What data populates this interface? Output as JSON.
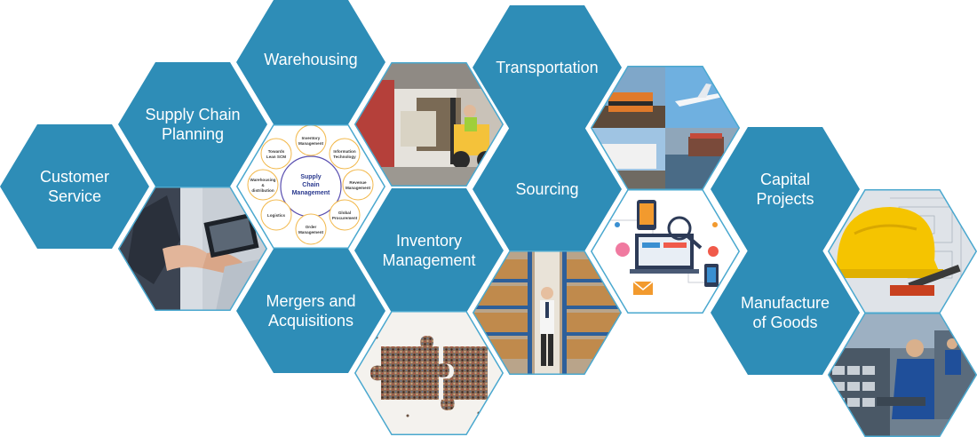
{
  "colors": {
    "hex_fill": "#2e8db7",
    "hex_text": "#ffffff",
    "image_border": "#4aa8cf",
    "scm_center_text": "#2b3a8f",
    "scm_ring": "#f2b84a"
  },
  "tiles": [
    {
      "id": "customer-service",
      "label": "Customer\nService"
    },
    {
      "id": "supply-chain-planning",
      "label": "Supply Chain\nPlanning"
    },
    {
      "id": "warehousing",
      "label": "Warehousing"
    },
    {
      "id": "mergers-and-acquisitions",
      "label": "Mergers and\nAcquisitions"
    },
    {
      "id": "inventory-management",
      "label": "Inventory\nManagement"
    },
    {
      "id": "transportation",
      "label": "Transportation"
    },
    {
      "id": "sourcing",
      "label": "Sourcing"
    },
    {
      "id": "capital-projects",
      "label": "Capital\nProjects"
    },
    {
      "id": "manufacture-of-goods",
      "label": "Manufacture\nof Goods"
    }
  ],
  "scm_diagram": {
    "center": [
      "Supply",
      "Chain",
      "Management"
    ],
    "nodes": [
      {
        "id": "inventory-management",
        "lines": [
          "Inventory",
          "Management"
        ]
      },
      {
        "id": "information-technology",
        "lines": [
          "Information",
          "Technology"
        ]
      },
      {
        "id": "revenue-management",
        "lines": [
          "Revenue",
          "Management"
        ]
      },
      {
        "id": "global-procurement",
        "lines": [
          "Global",
          "Procurement"
        ]
      },
      {
        "id": "order-management",
        "lines": [
          "Order",
          "Management"
        ]
      },
      {
        "id": "logistics",
        "lines": [
          "Logistics"
        ]
      },
      {
        "id": "warehousing-distribution",
        "lines": [
          "Warehousing",
          "&",
          "distribution"
        ]
      },
      {
        "id": "towards-lean-scm",
        "lines": [
          "Towards",
          "Lean SCM"
        ]
      }
    ]
  },
  "images": [
    {
      "id": "handshake-photo",
      "icon": "handshake-photo"
    },
    {
      "id": "scm-diagram",
      "icon": "scm-cycle-diagram"
    },
    {
      "id": "forklift-photo",
      "icon": "forklift-photo"
    },
    {
      "id": "puzzle-crowd-photo",
      "icon": "puzzle-crowd-photo"
    },
    {
      "id": "warehouse-worker-photo",
      "icon": "warehouse-worker-photo"
    },
    {
      "id": "transport-collage-photo",
      "icon": "train-plane-truck-ship-photo"
    },
    {
      "id": "sourcing-devices-illustration",
      "icon": "sourcing-devices-illustration"
    },
    {
      "id": "hardhat-blueprint-photo",
      "icon": "hardhat-blueprint-photo"
    },
    {
      "id": "factory-worker-photo",
      "icon": "factory-worker-photo"
    }
  ]
}
